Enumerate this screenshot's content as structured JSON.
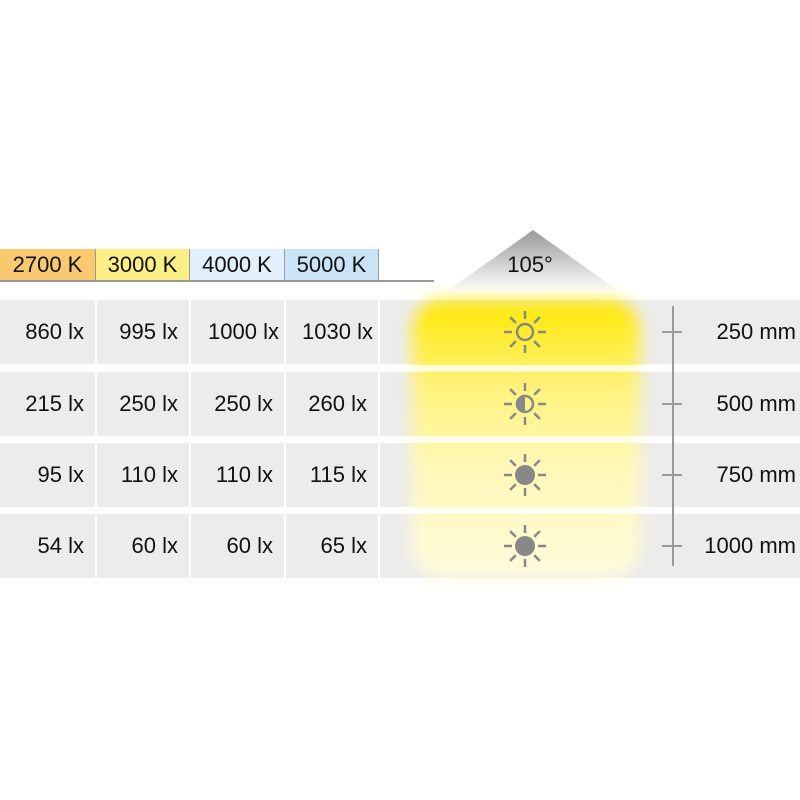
{
  "color_temps": [
    {
      "label": "2700 K",
      "color": "#f9c970"
    },
    {
      "label": "3000 K",
      "color": "#fbef86"
    },
    {
      "label": "4000 K",
      "color": "#e2f0fb"
    },
    {
      "label": "5000 K",
      "color": "#c9e3f7"
    }
  ],
  "beam_angle": "105°",
  "rows": [
    {
      "values": [
        "860 lx",
        "995 lx",
        "1000 lx",
        "1030 lx"
      ],
      "distance": "250 mm",
      "icon": "sun-outline-icon"
    },
    {
      "values": [
        "215 lx",
        "250 lx",
        "250 lx",
        "260 lx"
      ],
      "distance": "500 mm",
      "icon": "sun-half-icon"
    },
    {
      "values": [
        "95 lx",
        "110 lx",
        "110 lx",
        "115 lx"
      ],
      "distance": "750 mm",
      "icon": "sun-filled-icon"
    },
    {
      "values": [
        "54 lx",
        "60 lx",
        "60 lx",
        "65 lx"
      ],
      "distance": "1000 mm",
      "icon": "sun-filled-icon"
    }
  ]
}
